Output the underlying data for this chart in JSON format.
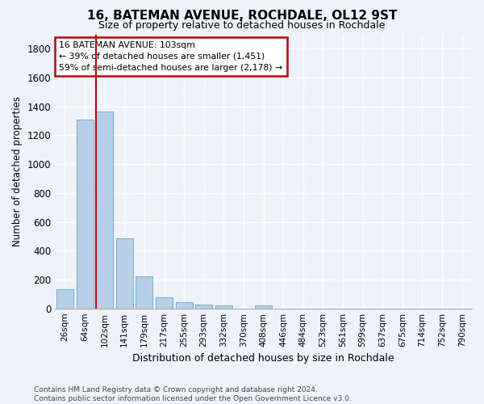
{
  "title": "16, BATEMAN AVENUE, ROCHDALE, OL12 9ST",
  "subtitle": "Size of property relative to detached houses in Rochdale",
  "xlabel": "Distribution of detached houses by size in Rochdale",
  "ylabel": "Number of detached properties",
  "categories": [
    "26sqm",
    "64sqm",
    "102sqm",
    "141sqm",
    "179sqm",
    "217sqm",
    "255sqm",
    "293sqm",
    "332sqm",
    "370sqm",
    "408sqm",
    "446sqm",
    "484sqm",
    "523sqm",
    "561sqm",
    "599sqm",
    "637sqm",
    "675sqm",
    "714sqm",
    "752sqm",
    "790sqm"
  ],
  "values": [
    135,
    1310,
    1365,
    485,
    225,
    75,
    45,
    28,
    18,
    0,
    18,
    0,
    0,
    0,
    0,
    0,
    0,
    0,
    0,
    0,
    0
  ],
  "bar_color": "#b8cfe8",
  "bar_edge_color": "#6aaed6",
  "vline_color": "#cc0000",
  "vline_x_index": 2,
  "annotation_line1": "16 BATEMAN AVENUE: 103sqm",
  "annotation_line2": "← 39% of detached houses are smaller (1,451)",
  "annotation_line3": "59% of semi-detached houses are larger (2,178) →",
  "annotation_box_edgecolor": "#cc0000",
  "ylim": [
    0,
    1900
  ],
  "yticks": [
    0,
    200,
    400,
    600,
    800,
    1000,
    1200,
    1400,
    1600,
    1800
  ],
  "background_color": "#eef2fb",
  "grid_color": "#ffffff",
  "footer_line1": "Contains HM Land Registry data © Crown copyright and database right 2024.",
  "footer_line2": "Contains public sector information licensed under the Open Government Licence v3.0."
}
